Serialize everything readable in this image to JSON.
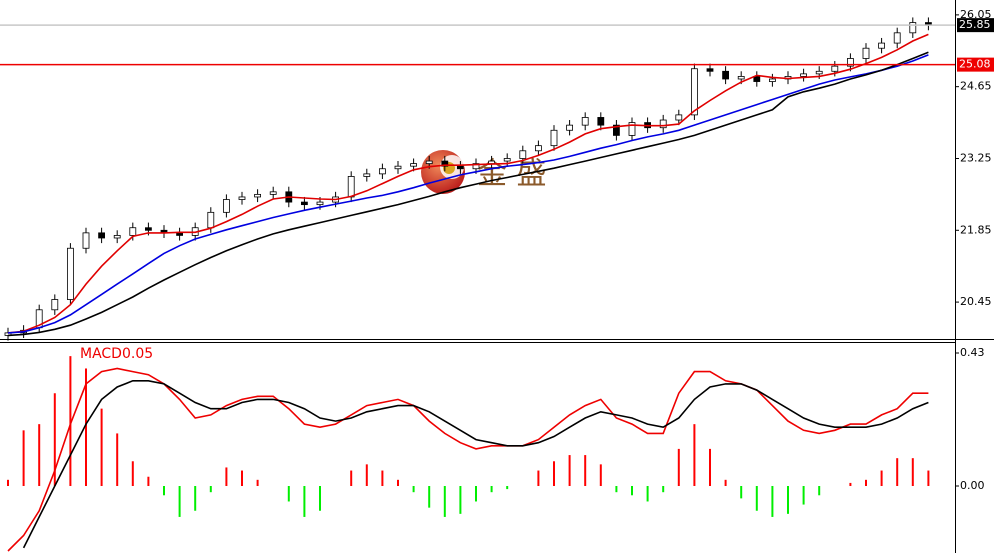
{
  "watermark": "金 盛",
  "chart_data": [
    {
      "type": "candlestick",
      "ylim": [
        19.75,
        26.34
      ],
      "yticks": [
        20.45,
        21.85,
        23.25,
        24.65,
        26.05
      ],
      "up_color": "#ffffff",
      "down_color": "#000000",
      "open": [
        19.8,
        19.85,
        19.95,
        20.3,
        20.5,
        21.5,
        21.8,
        21.7,
        21.75,
        21.9,
        21.85,
        21.8,
        21.75,
        21.9,
        22.2,
        22.45,
        22.5,
        22.55,
        22.6,
        22.4,
        22.35,
        22.4,
        22.5,
        22.9,
        22.95,
        23.05,
        23.1,
        23.15,
        23.2,
        23.1,
        23.05,
        23.15,
        23.2,
        23.25,
        23.4,
        23.5,
        23.8,
        23.9,
        24.05,
        23.9,
        23.7,
        23.95,
        23.85,
        24.0,
        24.1,
        25.0,
        24.95,
        24.8,
        24.85,
        24.75,
        24.8,
        24.85,
        24.9,
        24.95,
        25.05,
        25.2,
        25.4,
        25.5,
        25.7,
        25.9
      ],
      "high": [
        19.95,
        20.0,
        20.4,
        20.6,
        21.6,
        21.9,
        21.9,
        21.85,
        22.0,
        22.0,
        21.95,
        21.9,
        22.0,
        22.3,
        22.55,
        22.6,
        22.65,
        22.7,
        22.7,
        22.5,
        22.5,
        22.6,
        23.0,
        23.05,
        23.15,
        23.2,
        23.25,
        23.3,
        23.3,
        23.2,
        23.25,
        23.3,
        23.35,
        23.5,
        23.6,
        23.9,
        24.0,
        24.15,
        24.15,
        24.0,
        24.05,
        24.05,
        24.1,
        24.2,
        25.1,
        25.1,
        25.05,
        24.95,
        24.95,
        24.9,
        24.95,
        25.0,
        25.05,
        25.15,
        25.3,
        25.5,
        25.6,
        25.8,
        26.0,
        26.0
      ],
      "low": [
        19.7,
        19.75,
        19.85,
        20.2,
        20.4,
        21.4,
        21.6,
        21.6,
        21.65,
        21.75,
        21.7,
        21.65,
        21.65,
        21.8,
        22.1,
        22.35,
        22.4,
        22.45,
        22.3,
        22.25,
        22.25,
        22.3,
        22.4,
        22.8,
        22.85,
        22.95,
        23.0,
        23.05,
        23.0,
        22.95,
        22.95,
        23.05,
        23.1,
        23.15,
        23.3,
        23.4,
        23.7,
        23.8,
        23.8,
        23.6,
        23.6,
        23.75,
        23.75,
        23.9,
        24.0,
        24.85,
        24.7,
        24.7,
        24.65,
        24.65,
        24.7,
        24.75,
        24.8,
        24.85,
        24.95,
        25.1,
        25.3,
        25.4,
        25.6,
        25.75
      ],
      "close": [
        19.85,
        19.9,
        20.3,
        20.5,
        21.5,
        21.8,
        21.7,
        21.75,
        21.9,
        21.85,
        21.8,
        21.75,
        21.9,
        22.2,
        22.45,
        22.5,
        22.55,
        22.6,
        22.4,
        22.35,
        22.4,
        22.5,
        22.9,
        22.95,
        23.05,
        23.1,
        23.15,
        23.2,
        23.1,
        23.05,
        23.15,
        23.2,
        23.25,
        23.4,
        23.5,
        23.8,
        23.9,
        24.05,
        23.9,
        23.7,
        23.95,
        23.85,
        24.0,
        24.1,
        25.0,
        24.95,
        24.8,
        24.85,
        24.75,
        24.8,
        24.85,
        24.9,
        24.95,
        25.05,
        25.2,
        25.4,
        25.5,
        25.7,
        25.9,
        25.85
      ],
      "series": [
        {
          "color": "#e00000",
          "values": [
            19.85,
            19.88,
            20.0,
            20.15,
            20.4,
            20.8,
            21.15,
            21.45,
            21.73,
            21.8,
            21.8,
            21.81,
            21.81,
            21.89,
            22.02,
            22.16,
            22.32,
            22.46,
            22.5,
            22.48,
            22.46,
            22.45,
            22.51,
            22.62,
            22.76,
            22.9,
            23.03,
            23.09,
            23.12,
            23.12,
            23.13,
            23.14,
            23.15,
            23.21,
            23.31,
            23.43,
            23.57,
            23.73,
            23.83,
            23.87,
            23.9,
            23.89,
            23.89,
            23.92,
            24.18,
            24.38,
            24.57,
            24.74,
            24.87,
            24.83,
            24.81,
            24.83,
            24.85,
            24.91,
            24.99,
            25.1,
            25.22,
            25.37,
            25.54,
            25.67
          ]
        },
        {
          "color": "#0000e0",
          "values": [
            19.85,
            19.87,
            19.95,
            20.05,
            20.2,
            20.4,
            20.6,
            20.8,
            21.0,
            21.2,
            21.4,
            21.55,
            21.68,
            21.77,
            21.86,
            21.94,
            22.02,
            22.1,
            22.17,
            22.24,
            22.3,
            22.36,
            22.42,
            22.48,
            22.53,
            22.6,
            22.68,
            22.77,
            22.85,
            22.93,
            22.99,
            23.05,
            23.1,
            23.13,
            23.17,
            23.22,
            23.29,
            23.37,
            23.45,
            23.52,
            23.6,
            23.67,
            23.73,
            23.8,
            23.9,
            24.0,
            24.1,
            24.2,
            24.3,
            24.4,
            24.5,
            24.6,
            24.7,
            24.78,
            24.84,
            24.9,
            24.97,
            25.05,
            25.15,
            25.27
          ]
        },
        {
          "color": "#000000",
          "values": [
            19.8,
            19.82,
            19.86,
            19.92,
            20.0,
            20.12,
            20.25,
            20.4,
            20.55,
            20.72,
            20.88,
            21.03,
            21.18,
            21.32,
            21.45,
            21.57,
            21.68,
            21.78,
            21.86,
            21.93,
            22.0,
            22.07,
            22.14,
            22.21,
            22.28,
            22.35,
            22.43,
            22.51,
            22.6,
            22.68,
            22.75,
            22.82,
            22.88,
            22.94,
            23.0,
            23.06,
            23.13,
            23.2,
            23.27,
            23.34,
            23.41,
            23.48,
            23.55,
            23.62,
            23.7,
            23.8,
            23.9,
            24.0,
            24.1,
            24.2,
            24.45,
            24.55,
            24.62,
            24.7,
            24.8,
            24.88,
            24.97,
            25.08,
            25.2,
            25.32
          ]
        }
      ],
      "price_lines": [
        {
          "value": 25.85,
          "color": "#000000",
          "line_color": "#c8c8c8"
        },
        {
          "value": 25.08,
          "color": "#ee0000",
          "line_color": "#ee0000"
        }
      ]
    },
    {
      "type": "macd",
      "title": "MACD0.05",
      "ylim": [
        -0.2166,
        0.4656
      ],
      "yticks": [
        {
          "value": 0,
          "label": "0.00"
        },
        0.43
      ],
      "up_color": "#ff0000",
      "down_color": "#00ee00",
      "values": [
        0.02,
        0.18,
        0.2,
        0.3,
        0.42,
        0.38,
        0.25,
        0.17,
        0.08,
        0.03,
        -0.03,
        -0.1,
        -0.08,
        -0.02,
        0.06,
        0.05,
        0.02,
        0.0,
        -0.05,
        -0.1,
        -0.08,
        0.0,
        0.05,
        0.07,
        0.05,
        0.02,
        -0.02,
        -0.07,
        -0.1,
        -0.09,
        -0.05,
        -0.02,
        -0.01,
        0.0,
        0.05,
        0.08,
        0.1,
        0.1,
        0.07,
        -0.02,
        -0.03,
        -0.05,
        -0.02,
        0.12,
        0.2,
        0.12,
        0.02,
        -0.04,
        -0.08,
        -0.1,
        -0.09,
        -0.06,
        -0.03,
        0.0,
        0.01,
        0.02,
        0.05,
        0.09,
        0.09,
        0.05
      ],
      "series": [
        {
          "color": "#ee0000",
          "values": [
            -0.21,
            -0.16,
            -0.08,
            0.05,
            0.2,
            0.33,
            0.37,
            0.38,
            0.37,
            0.36,
            0.33,
            0.28,
            0.22,
            0.23,
            0.26,
            0.28,
            0.29,
            0.29,
            0.25,
            0.2,
            0.19,
            0.2,
            0.23,
            0.26,
            0.27,
            0.28,
            0.26,
            0.21,
            0.17,
            0.14,
            0.12,
            0.13,
            0.13,
            0.13,
            0.15,
            0.19,
            0.23,
            0.26,
            0.28,
            0.22,
            0.2,
            0.17,
            0.17,
            0.3,
            0.37,
            0.37,
            0.34,
            0.33,
            0.31,
            0.26,
            0.21,
            0.18,
            0.17,
            0.18,
            0.2,
            0.2,
            0.23,
            0.25,
            0.3,
            0.3
          ]
        },
        {
          "color": "#000000",
          "values": [
            null,
            -0.2,
            -0.1,
            0.0,
            0.1,
            0.2,
            0.28,
            0.32,
            0.34,
            0.34,
            0.33,
            0.3,
            0.27,
            0.25,
            0.25,
            0.27,
            0.28,
            0.28,
            0.27,
            0.25,
            0.22,
            0.21,
            0.22,
            0.24,
            0.25,
            0.26,
            0.26,
            0.24,
            0.21,
            0.18,
            0.15,
            0.14,
            0.13,
            0.13,
            0.14,
            0.16,
            0.19,
            0.22,
            0.24,
            0.23,
            0.22,
            0.2,
            0.19,
            0.22,
            0.28,
            0.32,
            0.33,
            0.33,
            0.31,
            0.28,
            0.25,
            0.22,
            0.2,
            0.19,
            0.19,
            0.19,
            0.2,
            0.22,
            0.25,
            0.27
          ]
        }
      ]
    }
  ]
}
